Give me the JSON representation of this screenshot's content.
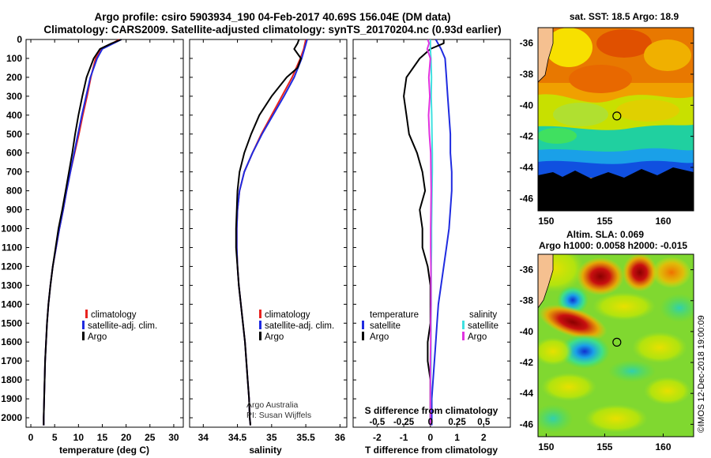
{
  "header": {
    "title_line1": "Argo profile: csiro 5903934_190 04-Feb-2017 40.69S 156.04E (DM data)",
    "title_line2": "Climatology: CARS2009. Satellite-adjusted climatology: synTS_20170204.nc (0.93d earlier)"
  },
  "watermark": "©IMOS 12-Dec-2018 19:00:09",
  "colors": {
    "climatology": "#e8231f",
    "satellite": "#1f2be0",
    "argo": "#000000",
    "sal_satellite": "#3fe0e0",
    "sal_argo": "#e033e0"
  },
  "depth_axis": {
    "ticks": [
      "0",
      "100",
      "200",
      "300",
      "400",
      "500",
      "600",
      "700",
      "800",
      "900",
      "1000",
      "1100",
      "1200",
      "1300",
      "1400",
      "1500",
      "1600",
      "1700",
      "1800",
      "1900",
      "2000"
    ],
    "range": [
      0,
      2050
    ]
  },
  "chart_data": [
    {
      "type": "line",
      "name": "temperature-profile",
      "xlabel": "temperature (deg C)",
      "xlim": [
        -1,
        32
      ],
      "x_ticks": [
        "0",
        "5",
        "10",
        "15",
        "20",
        "25",
        "30"
      ],
      "legend": [
        "climatology",
        "satellite-adj. clim.",
        "Argo"
      ],
      "legend_position": "center-right",
      "series": [
        {
          "name": "climatology",
          "depth": [
            0,
            50,
            100,
            200,
            300,
            400,
            500,
            600,
            700,
            800,
            900,
            1000,
            1100,
            1200,
            1300,
            1400,
            1500,
            1600,
            1700,
            1800,
            1900,
            2000,
            2040
          ],
          "values": [
            18.6,
            14.8,
            13.6,
            12.6,
            11.8,
            10.9,
            10.1,
            9.2,
            8.3,
            7.5,
            6.8,
            6.0,
            5.3,
            4.6,
            4.1,
            3.7,
            3.4,
            3.2,
            3.0,
            2.9,
            2.8,
            2.7,
            2.7
          ]
        },
        {
          "name": "satellite-adj. clim.",
          "depth": [
            0,
            50,
            100,
            200,
            300,
            400,
            500,
            600,
            700,
            800,
            900,
            1000,
            1100,
            1200,
            1300,
            1400,
            1500,
            1600,
            1700,
            1800,
            1900,
            2000,
            2040
          ],
          "values": [
            19.0,
            15.0,
            13.9,
            12.5,
            11.6,
            10.7,
            9.9,
            9.1,
            8.3,
            7.5,
            6.8,
            6.0,
            5.3,
            4.6,
            4.1,
            3.7,
            3.4,
            3.2,
            3.0,
            2.9,
            2.8,
            2.7,
            2.7
          ]
        },
        {
          "name": "Argo",
          "depth": [
            0,
            20,
            50,
            100,
            200,
            300,
            400,
            500,
            600,
            700,
            800,
            900,
            1000,
            1100,
            1200,
            1300,
            1400,
            1500,
            1600,
            1700,
            1800,
            1900,
            2000,
            2040
          ],
          "values": [
            19.0,
            17.0,
            14.5,
            13.2,
            11.7,
            10.8,
            10.0,
            9.3,
            8.7,
            8.0,
            7.3,
            6.6,
            5.8,
            5.2,
            4.6,
            4.1,
            3.7,
            3.4,
            3.2,
            3.0,
            2.9,
            2.8,
            2.7,
            2.7
          ]
        }
      ]
    },
    {
      "type": "line",
      "name": "salinity-profile",
      "xlabel": "salinity",
      "xlim": [
        33.8,
        36.1
      ],
      "x_ticks": [
        "34",
        "34.5",
        "35",
        "35.5",
        "36"
      ],
      "legend": [
        "climatology",
        "satellite-adj. clim.",
        "Argo"
      ],
      "legend_position": "center-right",
      "annotation": [
        "Argo Australia",
        "PI: Susan Wijffels"
      ],
      "series": [
        {
          "name": "climatology",
          "depth": [
            0,
            50,
            100,
            200,
            300,
            400,
            500,
            600,
            700,
            800,
            900,
            1000,
            1100,
            1200,
            1300,
            1400,
            1500,
            1600,
            1700,
            1800,
            1900,
            2000,
            2040
          ],
          "values": [
            35.5,
            35.47,
            35.42,
            35.3,
            35.15,
            35.0,
            34.85,
            34.72,
            34.6,
            34.53,
            34.5,
            34.49,
            34.49,
            34.5,
            34.52,
            34.55,
            34.58,
            34.61,
            34.63,
            34.65,
            34.67,
            34.68,
            34.69
          ]
        },
        {
          "name": "satellite-adj. clim.",
          "depth": [
            0,
            50,
            100,
            200,
            300,
            400,
            500,
            600,
            700,
            800,
            900,
            1000,
            1100,
            1200,
            1300,
            1400,
            1500,
            1600,
            1700,
            1800,
            1900,
            2000,
            2040
          ],
          "values": [
            35.52,
            35.48,
            35.44,
            35.33,
            35.18,
            35.02,
            34.86,
            34.72,
            34.6,
            34.53,
            34.5,
            34.49,
            34.49,
            34.5,
            34.52,
            34.55,
            34.58,
            34.61,
            34.63,
            34.65,
            34.67,
            34.68,
            34.69
          ]
        },
        {
          "name": "Argo",
          "depth": [
            0,
            20,
            50,
            100,
            150,
            200,
            300,
            400,
            500,
            600,
            700,
            800,
            900,
            1000,
            1100,
            1200,
            1300,
            1400,
            1500,
            1600,
            1700,
            1800,
            1900,
            2000,
            2040
          ],
          "values": [
            35.4,
            35.38,
            35.33,
            35.43,
            35.38,
            35.22,
            35.0,
            34.82,
            34.7,
            34.6,
            34.53,
            34.5,
            34.49,
            34.48,
            34.48,
            34.5,
            34.52,
            34.55,
            34.58,
            34.61,
            34.63,
            34.65,
            34.67,
            34.68,
            34.69
          ]
        }
      ]
    },
    {
      "type": "line",
      "name": "difference-profile",
      "xlabel": "T difference from climatology",
      "xlabel_top": "S difference from climatology",
      "xlim": [
        -2.9,
        3.0
      ],
      "x_ticks": [
        "-2",
        "-1",
        "0",
        "1",
        "2"
      ],
      "top_ticks": [
        "-0.5",
        "-0.25",
        "0",
        "0.25",
        "0.5"
      ],
      "legend_temperature_title": "temperature",
      "legend_salinity_title": "salinity",
      "legend": [
        "satellite",
        "Argo"
      ],
      "series": [
        {
          "name": "temperature satellite",
          "depth": [
            0,
            50,
            100,
            200,
            300,
            400,
            500,
            600,
            700,
            800,
            900,
            1000,
            1100,
            1200,
            1300,
            1400,
            1500,
            1600,
            1700,
            1800,
            1900,
            2000,
            2040
          ],
          "values": [
            0.2,
            0.4,
            0.55,
            0.6,
            0.65,
            0.7,
            0.75,
            0.75,
            0.8,
            0.8,
            0.75,
            0.7,
            0.6,
            0.5,
            0.4,
            0.3,
            0.25,
            0.2,
            0.15,
            0.1,
            0.05,
            0.05,
            0.05
          ]
        },
        {
          "name": "temperature Argo",
          "depth": [
            0,
            20,
            50,
            100,
            200,
            300,
            400,
            500,
            600,
            700,
            800,
            900,
            1000,
            1100,
            1200,
            1300,
            1400,
            1500,
            1600,
            1700,
            1800,
            1900,
            2000,
            2040
          ],
          "values": [
            0.5,
            0.5,
            0.0,
            -0.4,
            -0.9,
            -1.0,
            -0.9,
            -0.8,
            -0.5,
            -0.3,
            -0.2,
            -0.4,
            -0.3,
            -0.3,
            -0.1,
            0.0,
            0.0,
            0.0,
            -0.1,
            -0.1,
            0.0,
            0.0,
            0.0,
            0.0
          ]
        },
        {
          "name": "salinity satellite",
          "depth": [
            0,
            50,
            100,
            200,
            300,
            400,
            500,
            600,
            700,
            800,
            900,
            1000,
            1100,
            1200,
            1300,
            1400,
            1500,
            1600,
            1700,
            1800,
            1900,
            2000,
            2040
          ],
          "values": [
            0.0,
            0.0,
            0.02,
            0.04,
            0.03,
            0.05,
            0.06,
            0.07,
            0.07,
            0.06,
            0.05,
            0.04,
            0.04,
            0.03,
            0.03,
            0.03,
            0.02,
            0.02,
            0.02,
            0.01,
            0.01,
            0.0,
            0.0
          ]
        },
        {
          "name": "salinity Argo",
          "depth": [
            0,
            20,
            50,
            100,
            200,
            300,
            400,
            500,
            600,
            700,
            800,
            900,
            1000,
            1100,
            1200,
            1300,
            1400,
            1500,
            1600,
            1700,
            1800,
            1900,
            2000,
            2040
          ],
          "values": [
            -0.1,
            -0.05,
            -0.12,
            0.0,
            -0.06,
            -0.02,
            -0.07,
            -0.04,
            0.01,
            0.02,
            0.03,
            0.02,
            0.01,
            0.01,
            0.02,
            0.02,
            0.02,
            0.01,
            0.01,
            0.0,
            0.0,
            0.0,
            0.0,
            0.0
          ]
        }
      ]
    },
    {
      "type": "heatmap",
      "name": "sst-map",
      "title": "sat. SST: 18.5 Argo: 18.9",
      "x_ticks": [
        "150",
        "155",
        "160"
      ],
      "y_ticks": [
        "-36",
        "-38",
        "-40",
        "-42",
        "-44",
        "-46"
      ],
      "xlim": [
        149.3,
        162.6
      ],
      "ylim": [
        -46.8,
        -35.0
      ],
      "marker": {
        "lon": 156.04,
        "lat": -40.69
      }
    },
    {
      "type": "heatmap",
      "name": "sla-map",
      "title_line1": "Altim. SLA: 0.069",
      "title_line2": "Argo h1000: 0.0058 h2000: -0.015",
      "x_ticks": [
        "150",
        "155",
        "160"
      ],
      "y_ticks": [
        "-36",
        "-38",
        "-40",
        "-42",
        "-44",
        "-46"
      ],
      "xlim": [
        149.3,
        162.6
      ],
      "ylim": [
        -46.8,
        -35.0
      ],
      "marker": {
        "lon": 156.04,
        "lat": -40.69
      }
    }
  ]
}
